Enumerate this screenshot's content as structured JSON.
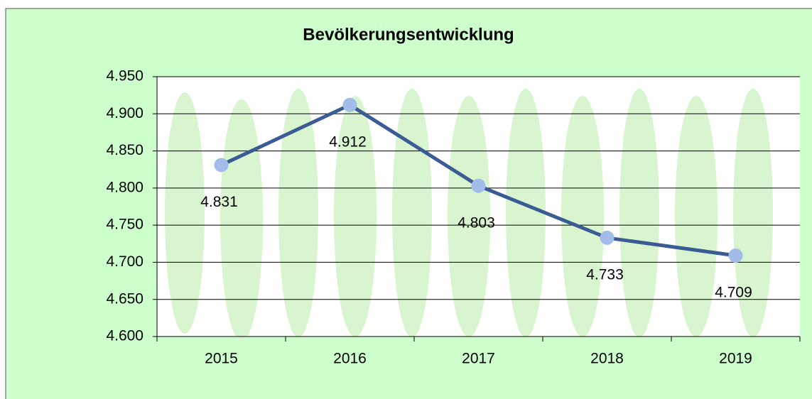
{
  "chart_data": {
    "type": "line",
    "title": "Bevölkerungsentwicklung",
    "categories": [
      "2015",
      "2016",
      "2017",
      "2018",
      "2019"
    ],
    "series": [
      {
        "color": "#3b5b94",
        "marker_color": "#a3bdea",
        "values": [
          4831,
          4912,
          4803,
          4733,
          4709
        ],
        "value_labels": [
          "4.831",
          "4.912",
          "4.803",
          "4.733",
          "4.709"
        ]
      }
    ],
    "ylim": [
      4600,
      4950
    ],
    "yticks": [
      {
        "value": 4600,
        "label": "4.600"
      },
      {
        "value": 4650,
        "label": "4.650"
      },
      {
        "value": 4700,
        "label": "4.700"
      },
      {
        "value": 4750,
        "label": "4.750"
      },
      {
        "value": 4800,
        "label": "4.800"
      },
      {
        "value": 4850,
        "label": "4.850"
      },
      {
        "value": 4900,
        "label": "4.900"
      },
      {
        "value": 4950,
        "label": "4.950"
      }
    ],
    "grid": true
  }
}
